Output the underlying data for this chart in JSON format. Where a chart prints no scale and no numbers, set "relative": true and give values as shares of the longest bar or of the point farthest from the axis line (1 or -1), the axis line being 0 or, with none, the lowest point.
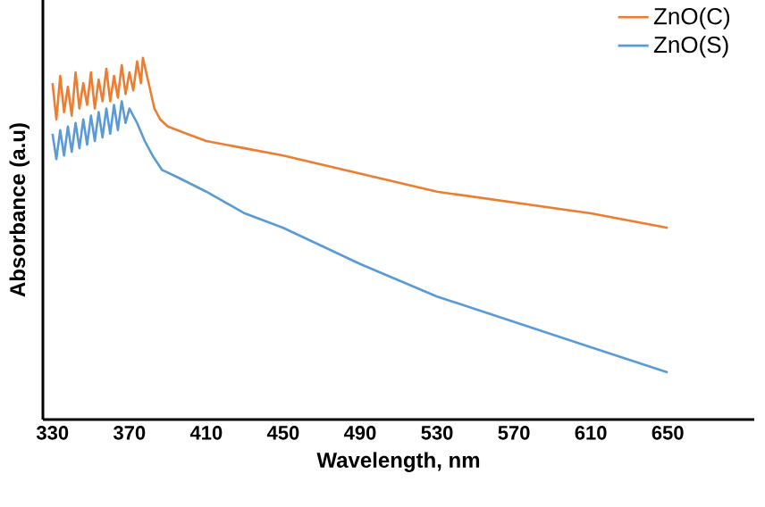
{
  "chart_data": {
    "type": "line",
    "xlabel": "Wavelength, nm",
    "ylabel": "Absorbance (a.u)",
    "relative": true,
    "xlim": [
      325,
      695
    ],
    "xticks": [
      330,
      370,
      410,
      450,
      490,
      530,
      570,
      610,
      650
    ],
    "legend": "top right",
    "series": [
      {
        "name": "ZnO(C)",
        "color": "#ed7d31",
        "x": [
          330,
          332,
          334,
          336,
          338,
          340,
          342,
          344,
          346,
          348,
          350,
          352,
          354,
          356,
          358,
          360,
          362,
          364,
          366,
          368,
          370,
          372,
          374,
          376,
          377,
          380,
          383,
          386,
          390,
          400,
          410,
          430,
          450,
          490,
          530,
          570,
          610,
          650
        ],
        "values": [
          0.93,
          0.83,
          0.95,
          0.85,
          0.92,
          0.84,
          0.96,
          0.86,
          0.93,
          0.87,
          0.96,
          0.86,
          0.94,
          0.88,
          0.97,
          0.88,
          0.95,
          0.89,
          0.98,
          0.9,
          0.96,
          0.91,
          0.99,
          0.93,
          1.0,
          0.93,
          0.86,
          0.83,
          0.81,
          0.79,
          0.77,
          0.75,
          0.73,
          0.68,
          0.63,
          0.6,
          0.57,
          0.53
        ]
      },
      {
        "name": "ZnO(S)",
        "color": "#5b9bd5",
        "x": [
          330,
          332,
          334,
          336,
          338,
          340,
          342,
          344,
          346,
          348,
          350,
          352,
          354,
          356,
          358,
          360,
          362,
          364,
          366,
          368,
          370,
          374,
          378,
          382,
          387,
          395,
          410,
          430,
          450,
          490,
          530,
          570,
          610,
          650
        ],
        "values": [
          0.79,
          0.72,
          0.8,
          0.73,
          0.81,
          0.74,
          0.82,
          0.75,
          0.83,
          0.76,
          0.84,
          0.77,
          0.85,
          0.78,
          0.86,
          0.79,
          0.87,
          0.8,
          0.88,
          0.82,
          0.86,
          0.82,
          0.77,
          0.73,
          0.69,
          0.67,
          0.63,
          0.57,
          0.53,
          0.43,
          0.34,
          0.27,
          0.2,
          0.13
        ]
      }
    ]
  }
}
